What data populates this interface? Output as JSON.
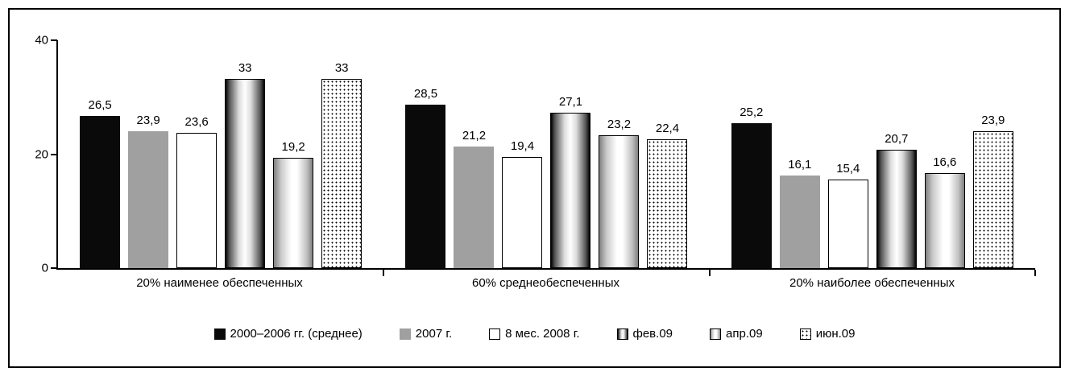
{
  "chart_data": {
    "type": "bar",
    "title": "",
    "xlabel": "",
    "ylabel": "",
    "ylim": [
      0,
      40
    ],
    "yticks": [
      "40",
      "20",
      "0"
    ],
    "grid": false,
    "legend_position": "bottom",
    "categories": [
      "20% наименее обеспеченных",
      "60% среднеобеспеченных",
      "20% наиболее обеспеченных"
    ],
    "series": [
      {
        "name": "2000–2006 гг. (среднее)",
        "style": "black",
        "values": [
          26.5,
          28.5,
          25.2
        ],
        "labels": [
          "26,5",
          "28,5",
          "25,2"
        ]
      },
      {
        "name": "2007 г.",
        "style": "gray",
        "values": [
          23.9,
          21.2,
          16.1
        ],
        "labels": [
          "23,9",
          "21,2",
          "16,1"
        ]
      },
      {
        "name": "8 мес. 2008 г.",
        "style": "white",
        "values": [
          23.6,
          19.4,
          15.4
        ],
        "labels": [
          "23,6",
          "19,4",
          "15,4"
        ]
      },
      {
        "name": "фев.09",
        "style": "cyl1",
        "values": [
          33,
          27.1,
          20.7
        ],
        "labels": [
          "33",
          "27,1",
          "20,7"
        ]
      },
      {
        "name": "апр.09",
        "style": "cyl2",
        "values": [
          19.2,
          23.2,
          16.6
        ],
        "labels": [
          "19,2",
          "23,2",
          "16,6"
        ]
      },
      {
        "name": "июн.09",
        "style": "dots",
        "values": [
          33,
          22.4,
          23.9
        ],
        "labels": [
          "33",
          "22,4",
          "23,9"
        ]
      }
    ],
    "palette": {
      "bar_black": "#0a0a0a",
      "bar_gray": "#a0a0a0",
      "bar_white": "#ffffff",
      "border": "#000000"
    }
  }
}
